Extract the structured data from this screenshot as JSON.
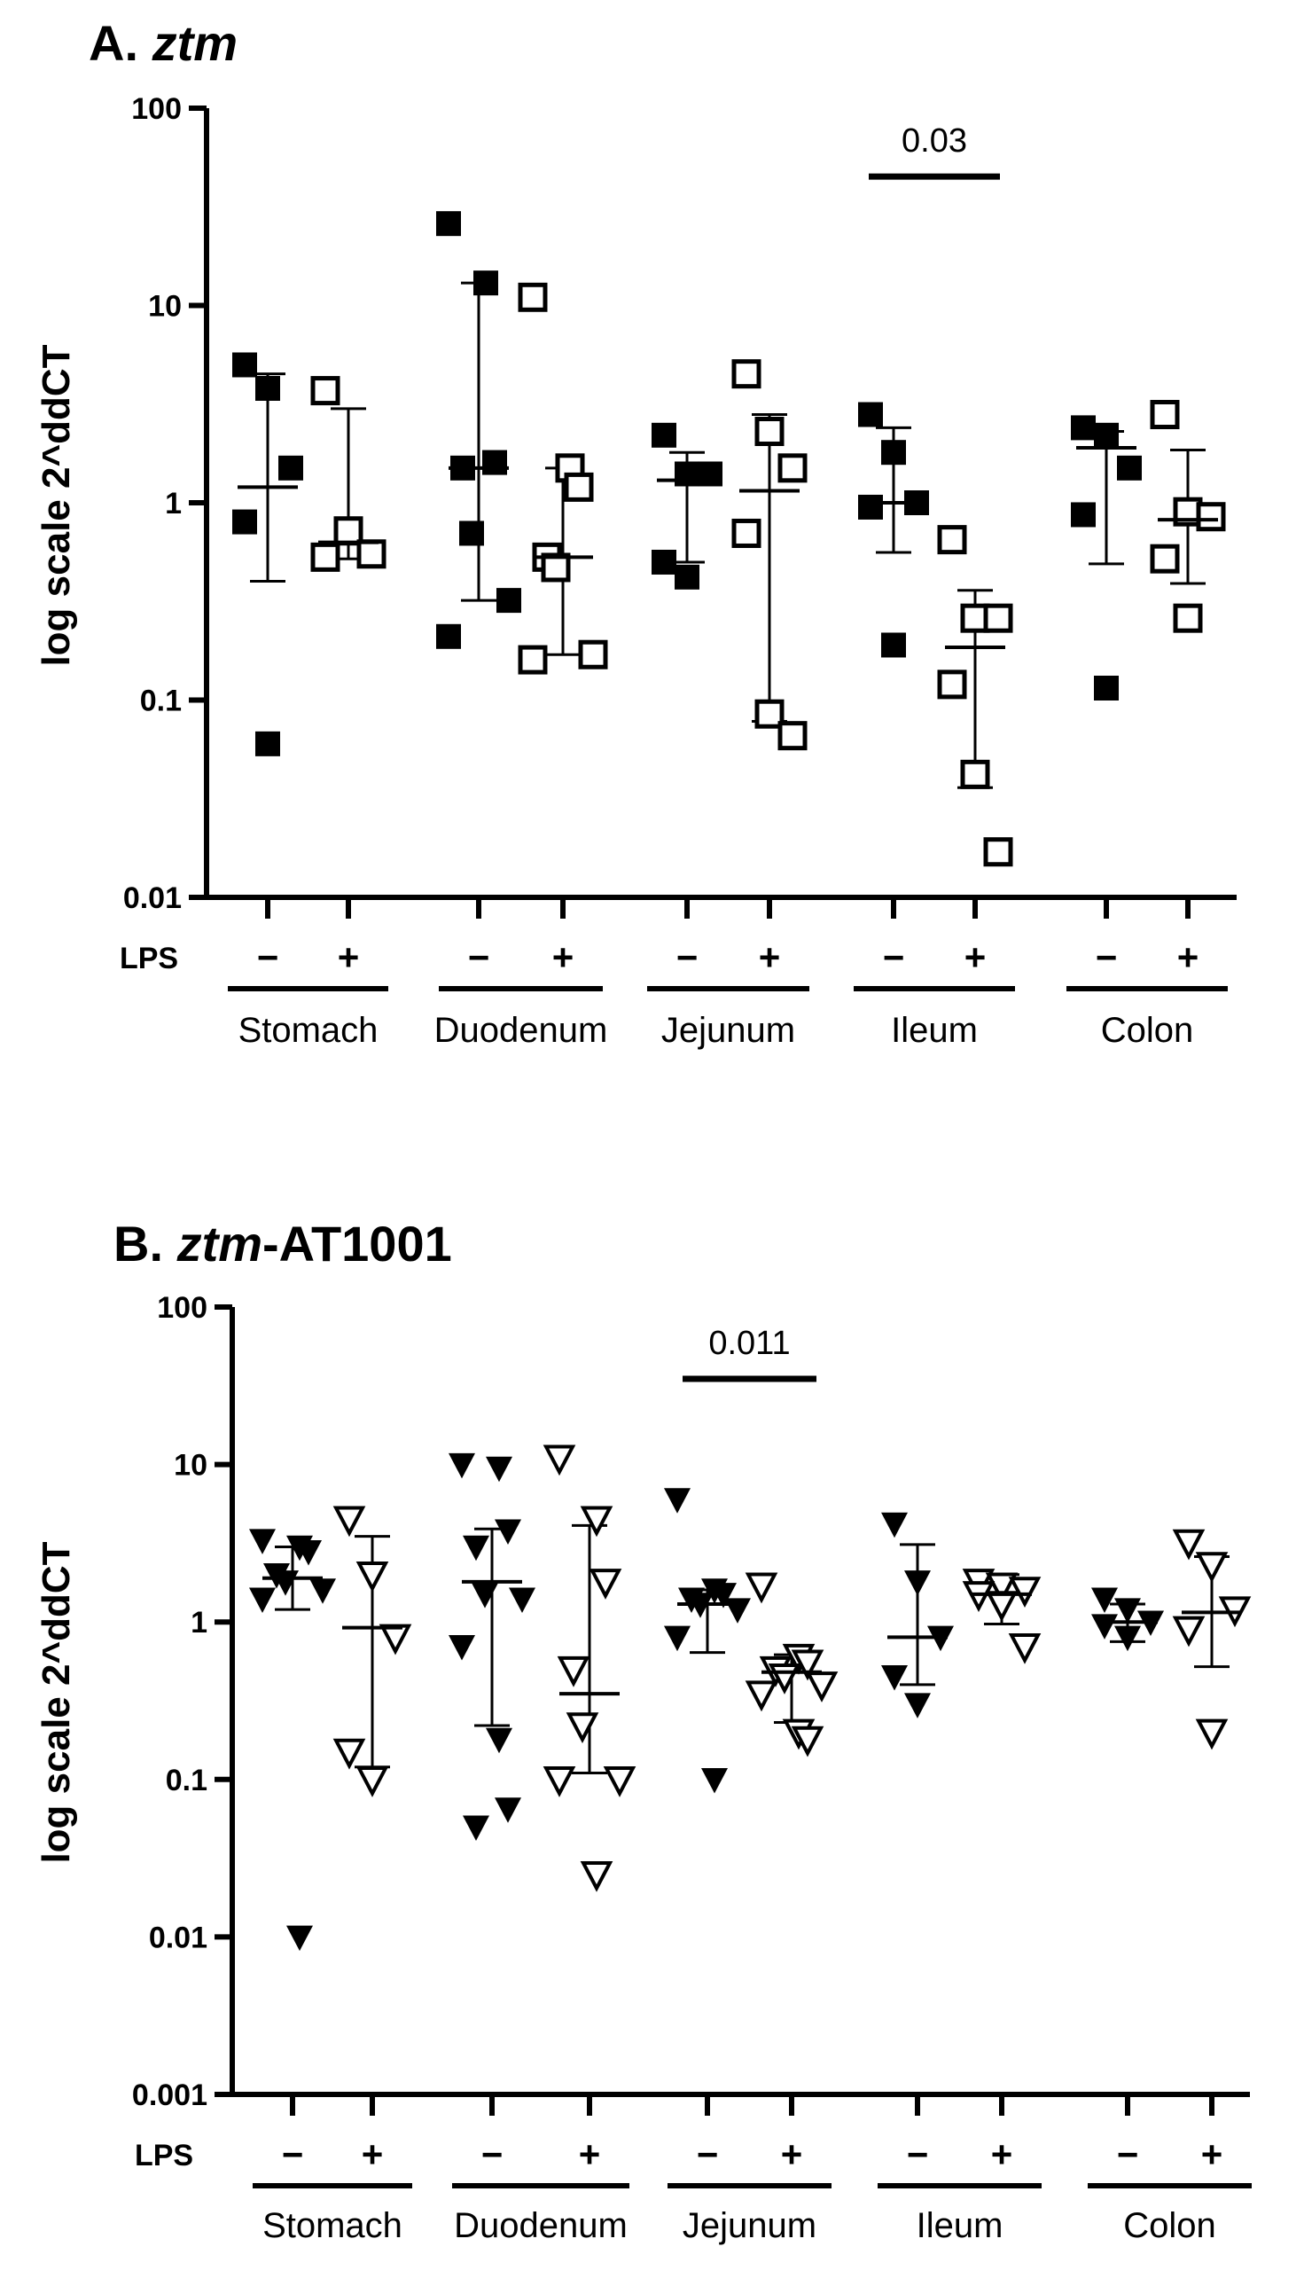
{
  "chart_data": [
    {
      "type": "scatter",
      "title_prefix": "A. ",
      "title_gene": "ztm",
      "title_suffix": "",
      "ylabel": "log scale 2^ddCT",
      "yscale": "log",
      "ylim": [
        0.01,
        100
      ],
      "yticks": [
        "0.01",
        "0.1",
        "1",
        "10",
        "100"
      ],
      "marker_neg": "square-filled",
      "marker_pos": "square-open",
      "row_label": "LPS",
      "neg_sign": "−",
      "pos_sign": "+",
      "groups": [
        {
          "name": "Stomach",
          "neg": {
            "points": [
              5.0,
              3.8,
              1.5,
              0.8,
              0.06
            ],
            "mean": 1.2,
            "sd": [
              0.4,
              4.5
            ]
          },
          "pos": {
            "points": [
              3.7,
              0.72,
              0.55,
              0.53
            ],
            "mean": 0.63,
            "sd": [
              0.52,
              3.0
            ]
          }
        },
        {
          "name": "Duodenum",
          "neg": {
            "points": [
              26,
              13,
              1.6,
              1.5,
              0.7,
              0.32,
              0.21
            ],
            "mean": 1.5,
            "sd": [
              0.32,
              13
            ]
          },
          "pos": {
            "points": [
              11,
              1.5,
              1.2,
              0.53,
              0.47,
              0.17,
              0.16
            ],
            "mean": 0.53,
            "sd": [
              0.17,
              1.5
            ]
          }
        },
        {
          "name": "Jejunum",
          "neg": {
            "points": [
              2.2,
              1.4,
              1.4,
              0.5,
              0.42
            ],
            "mean": 1.3,
            "sd": [
              0.5,
              1.8
            ]
          },
          "pos": {
            "points": [
              4.5,
              2.3,
              1.5,
              0.7,
              0.085,
              0.066
            ],
            "mean": 1.15,
            "sd": [
              0.078,
              2.8
            ]
          }
        },
        {
          "name": "Ileum",
          "neg": {
            "points": [
              2.8,
              1.8,
              1.0,
              0.95,
              0.19
            ],
            "mean": 1.0,
            "sd": [
              0.56,
              2.4
            ]
          },
          "pos": {
            "points": [
              0.65,
              0.26,
              0.26,
              0.12,
              0.042,
              0.017
            ],
            "mean": 0.185,
            "sd": [
              0.036,
              0.36
            ]
          }
        },
        {
          "name": "Colon",
          "neg": {
            "points": [
              2.4,
              2.2,
              1.5,
              0.87,
              0.115
            ],
            "mean": 1.9,
            "sd": [
              0.49,
              2.3
            ]
          },
          "pos": {
            "points": [
              2.8,
              0.9,
              0.85,
              0.52,
              0.26
            ],
            "mean": 0.82,
            "sd": [
              0.39,
              1.85
            ]
          }
        }
      ],
      "annotations": [
        {
          "text": "0.03",
          "group_from": 3,
          "group_to": 3,
          "y": 45
        }
      ]
    },
    {
      "type": "scatter",
      "title_prefix": "B. ",
      "title_gene": "ztm",
      "title_suffix": "-AT1001",
      "ylabel": "log scale 2^ddCT",
      "yscale": "log",
      "ylim": [
        0.001,
        100
      ],
      "yticks": [
        "0.001",
        "0.01",
        "0.1",
        "1",
        "10",
        "100"
      ],
      "marker_neg": "triangle-down-filled",
      "marker_pos": "triangle-down-open",
      "row_label": "LPS",
      "neg_sign": "−",
      "pos_sign": "+",
      "groups": [
        {
          "name": "Stomach",
          "neg": {
            "points": [
              3.3,
              3.0,
              2.8,
              2.0,
              1.8,
              1.6,
              1.4,
              0.01
            ],
            "mean": 1.9,
            "sd": [
              1.2,
              3.0
            ]
          },
          "pos": {
            "points": [
              4.5,
              2.0,
              0.8,
              0.15,
              0.1
            ],
            "mean": 0.92,
            "sd": [
              0.12,
              3.5
            ]
          }
        },
        {
          "name": "Duodenum",
          "neg": {
            "points": [
              10,
              9.5,
              3.8,
              3.0,
              1.5,
              1.4,
              0.7,
              0.18,
              0.065,
              0.05
            ],
            "mean": 1.8,
            "sd": [
              0.22,
              3.9
            ]
          },
          "pos": {
            "points": [
              11,
              4.5,
              1.8,
              0.5,
              0.22,
              0.1,
              0.1,
              0.025
            ],
            "mean": 0.35,
            "sd": [
              0.11,
              4.1
            ]
          }
        },
        {
          "name": "Jejunum",
          "neg": {
            "points": [
              6.0,
              1.6,
              1.5,
              1.4,
              1.3,
              1.2,
              0.8,
              0.1
            ],
            "mean": 1.3,
            "sd": [
              0.64,
              1.6
            ]
          },
          "pos": {
            "points": [
              1.7,
              0.6,
              0.55,
              0.5,
              0.45,
              0.4,
              0.35,
              0.2,
              0.18
            ],
            "mean": 0.48,
            "sd": [
              0.23,
              0.62
            ]
          }
        },
        {
          "name": "Ileum",
          "neg": {
            "points": [
              4.2,
              1.8,
              0.8,
              0.45,
              0.3
            ],
            "mean": 0.8,
            "sd": [
              0.4,
              3.1
            ]
          },
          "pos": {
            "points": [
              1.8,
              1.7,
              1.6,
              1.5,
              1.3,
              0.7
            ],
            "mean": 1.5,
            "sd": [
              0.97,
              2.0
            ]
          }
        },
        {
          "name": "Colon",
          "neg": {
            "points": [
              1.4,
              1.2,
              1.0,
              0.95,
              0.8
            ],
            "mean": 1.0,
            "sd": [
              0.75,
              1.3
            ]
          },
          "pos": {
            "points": [
              3.2,
              2.3,
              1.2,
              0.9,
              0.2
            ],
            "mean": 1.15,
            "sd": [
              0.52,
              2.6
            ]
          }
        }
      ],
      "annotations": [
        {
          "text": "0.011",
          "group_from": 2,
          "group_to": 2,
          "y": 35
        }
      ]
    }
  ]
}
